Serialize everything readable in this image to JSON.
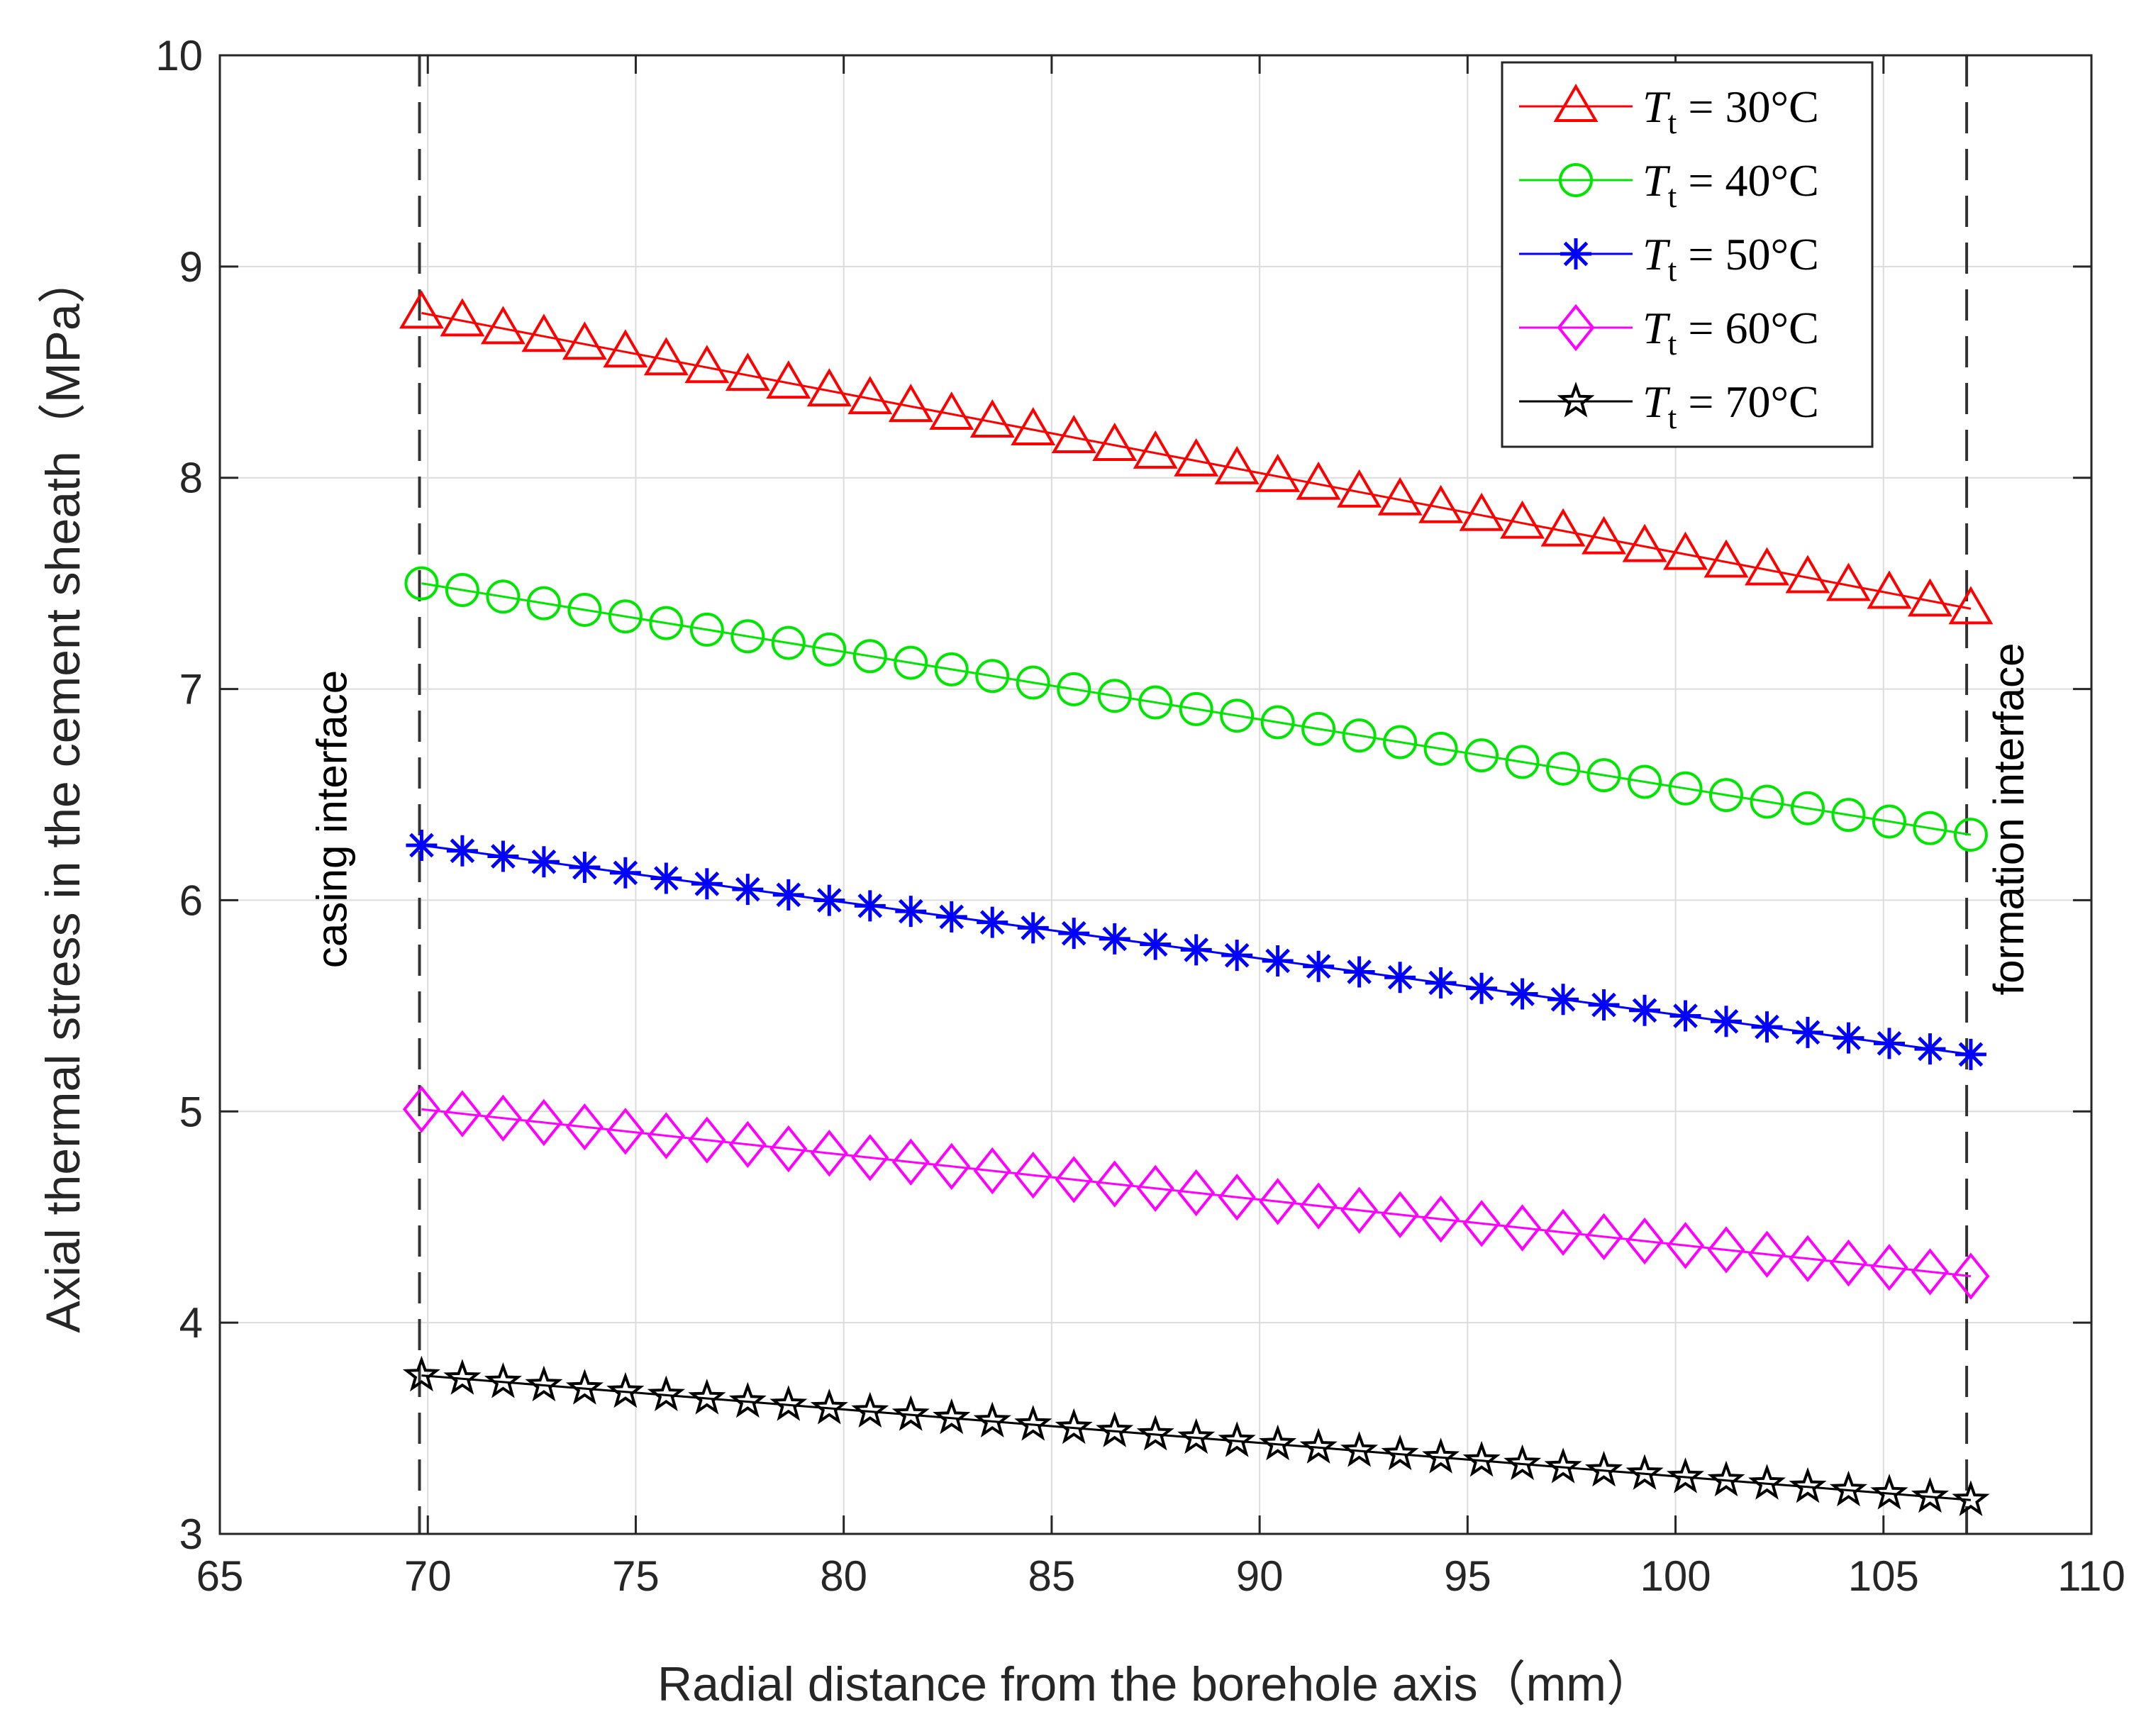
{
  "chart_data": {
    "type": "line",
    "title": "",
    "xlabel": "Radial distance from the borehole axis（mm）",
    "ylabel": "Axial thermal stress in the cement sheath（MPa）",
    "xlim": [
      65,
      110
    ],
    "ylim": [
      3,
      10
    ],
    "xticks": [
      65,
      70,
      75,
      80,
      85,
      90,
      95,
      100,
      105,
      110
    ],
    "yticks": [
      3,
      4,
      5,
      6,
      7,
      8,
      9,
      10
    ],
    "xtick_labels": [
      "65",
      "70",
      "75",
      "80",
      "85",
      "90",
      "95",
      "100",
      "105",
      "110"
    ],
    "ytick_labels": [
      "3",
      "4",
      "5",
      "6",
      "7",
      "8",
      "9",
      "10"
    ],
    "grid": true,
    "legend_position": "top-right",
    "x_start": 69.85,
    "x_end": 107.1,
    "n_points": 39,
    "series": [
      {
        "name": "T_t = 30°C",
        "label_var": "T",
        "label_sub": "t",
        "label_rest": " = 30°C",
        "color": "#ff0000",
        "marker": "triangle",
        "y_start": 8.78,
        "y_end": 7.38
      },
      {
        "name": "T_t = 40°C",
        "label_var": "T",
        "label_sub": "t",
        "label_rest": " = 40°C",
        "color": "#00e600",
        "marker": "circle",
        "y_start": 7.5,
        "y_end": 6.31
      },
      {
        "name": "T_t = 50°C",
        "label_var": "T",
        "label_sub": "t",
        "label_rest": " = 50°C",
        "color": "#0000ff",
        "marker": "asterisk",
        "y_start": 6.26,
        "y_end": 5.27
      },
      {
        "name": "T_t = 60°C",
        "label_var": "T",
        "label_sub": "t",
        "label_rest": " = 60°C",
        "color": "#ff00ff",
        "marker": "diamond",
        "y_start": 5.01,
        "y_end": 4.22
      },
      {
        "name": "T_t = 70°C",
        "label_var": "T",
        "label_sub": "t",
        "label_rest": " = 70°C",
        "color": "#000000",
        "marker": "pentagram",
        "y_start": 3.75,
        "y_end": 3.16
      }
    ],
    "vertical_lines": [
      {
        "x": 69.8,
        "label": "casing interface"
      },
      {
        "x": 107.0,
        "label": "formation interface"
      }
    ]
  }
}
